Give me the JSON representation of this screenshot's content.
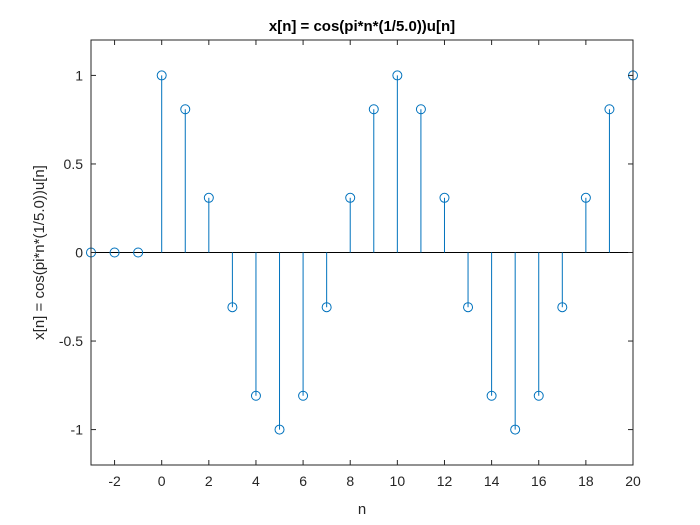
{
  "chart_data": {
    "type": "stem",
    "title": "x[n] = cos(pi*n*(1/5.0))u[n]",
    "xlabel": "n",
    "ylabel": "x[n] = cos(pi*n*(1/5.0))u[n]",
    "xlim": [
      -3,
      20
    ],
    "ylim": [
      -1.2,
      1.2
    ],
    "xticks": [
      -2,
      0,
      2,
      4,
      6,
      8,
      10,
      12,
      14,
      16,
      18,
      20
    ],
    "xtick_labels": [
      "-2",
      "0",
      "2",
      "4",
      "6",
      "8",
      "10",
      "12",
      "14",
      "16",
      "18",
      "20"
    ],
    "yticks": [
      -1,
      -0.5,
      0,
      0.5,
      1
    ],
    "ytick_labels": [
      "-1",
      "-0.5",
      "0",
      "0.5",
      "1"
    ],
    "grid": false,
    "series": [
      {
        "color": "#0072BD",
        "x": [
          -3,
          -2,
          -1,
          0,
          1,
          2,
          3,
          4,
          5,
          6,
          7,
          8,
          9,
          10,
          11,
          12,
          13,
          14,
          15,
          16,
          17,
          18,
          19,
          20
        ],
        "y": [
          0,
          0,
          0,
          1,
          0.809,
          0.309,
          -0.309,
          -0.809,
          -1,
          -0.809,
          -0.309,
          0.309,
          0.809,
          1,
          0.809,
          0.309,
          -0.309,
          -0.809,
          -1,
          -0.809,
          -0.309,
          0.309,
          0.809,
          1
        ]
      }
    ]
  }
}
